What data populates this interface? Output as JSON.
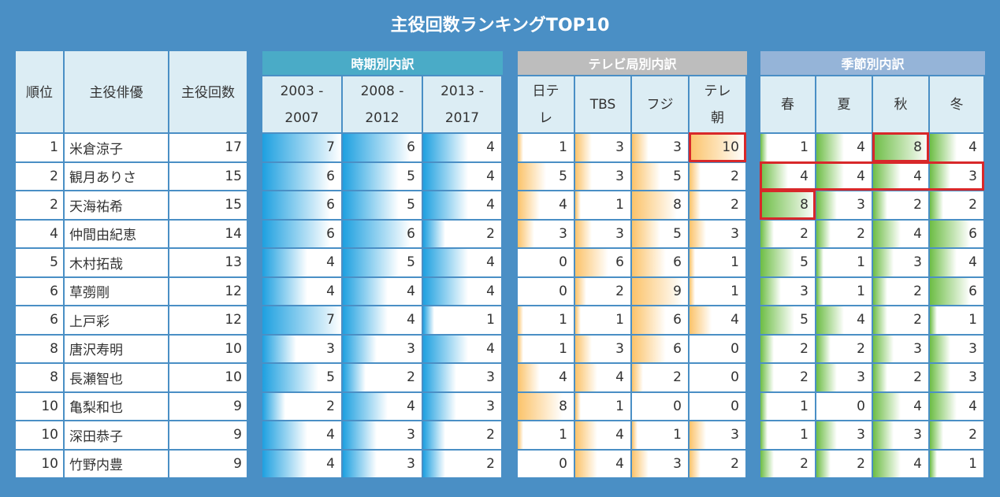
{
  "title": "主役回数ランキングTOP10",
  "columns": [
    "順位",
    "主役俳優",
    "主役回数"
  ],
  "groups": [
    {
      "title": "時期別内訳",
      "header_color": "#4aabc7",
      "bar_color": "#1ea0e0",
      "columns": [
        "2003 - 2007",
        "2008 - 2012",
        "2013 - 2017"
      ]
    },
    {
      "title": "テレビ局別内訳",
      "header_color": "#bdbdbd",
      "bar_color": "#fbc36a",
      "columns": [
        "日テレ",
        "TBS",
        "フジ",
        "テレ朝"
      ]
    },
    {
      "title": "季節別内訳",
      "header_color": "#95b4d8",
      "bar_color": "#6dbd45",
      "columns": [
        "春",
        "夏",
        "秋",
        "冬"
      ]
    }
  ],
  "rows": [
    {
      "rank": 1,
      "name": "米倉涼子",
      "count": 17,
      "breakdown": [
        [
          7,
          6,
          4
        ],
        [
          1,
          3,
          3,
          10
        ],
        [
          1,
          4,
          8,
          4
        ]
      ]
    },
    {
      "rank": 2,
      "name": "観月ありさ",
      "count": 15,
      "breakdown": [
        [
          6,
          5,
          4
        ],
        [
          5,
          3,
          5,
          2
        ],
        [
          4,
          4,
          4,
          3
        ]
      ]
    },
    {
      "rank": 2,
      "name": "天海祐希",
      "count": 15,
      "breakdown": [
        [
          6,
          5,
          4
        ],
        [
          4,
          1,
          8,
          2
        ],
        [
          8,
          3,
          2,
          2
        ]
      ]
    },
    {
      "rank": 4,
      "name": "仲間由紀恵",
      "count": 14,
      "breakdown": [
        [
          6,
          6,
          2
        ],
        [
          3,
          3,
          5,
          3
        ],
        [
          2,
          2,
          4,
          6
        ]
      ]
    },
    {
      "rank": 5,
      "name": "木村拓哉",
      "count": 13,
      "breakdown": [
        [
          4,
          5,
          4
        ],
        [
          0,
          6,
          6,
          1
        ],
        [
          5,
          1,
          3,
          4
        ]
      ]
    },
    {
      "rank": 6,
      "name": "草彅剛",
      "count": 12,
      "breakdown": [
        [
          4,
          4,
          4
        ],
        [
          0,
          2,
          9,
          1
        ],
        [
          3,
          1,
          2,
          6
        ]
      ]
    },
    {
      "rank": 6,
      "name": "上戸彩",
      "count": 12,
      "breakdown": [
        [
          7,
          4,
          1
        ],
        [
          1,
          1,
          6,
          4
        ],
        [
          5,
          4,
          2,
          1
        ]
      ]
    },
    {
      "rank": 8,
      "name": "唐沢寿明",
      "count": 10,
      "breakdown": [
        [
          3,
          3,
          4
        ],
        [
          1,
          3,
          6,
          0
        ],
        [
          2,
          2,
          3,
          3
        ]
      ]
    },
    {
      "rank": 8,
      "name": "長瀬智也",
      "count": 10,
      "breakdown": [
        [
          5,
          2,
          3
        ],
        [
          4,
          4,
          2,
          0
        ],
        [
          2,
          3,
          2,
          3
        ]
      ]
    },
    {
      "rank": 10,
      "name": "亀梨和也",
      "count": 9,
      "breakdown": [
        [
          2,
          4,
          3
        ],
        [
          8,
          1,
          0,
          0
        ],
        [
          1,
          0,
          4,
          4
        ]
      ]
    },
    {
      "rank": 10,
      "name": "深田恭子",
      "count": 9,
      "breakdown": [
        [
          4,
          3,
          2
        ],
        [
          1,
          4,
          1,
          3
        ],
        [
          1,
          3,
          3,
          2
        ]
      ]
    },
    {
      "rank": 10,
      "name": "竹野内豊",
      "count": 9,
      "breakdown": [
        [
          4,
          3,
          2
        ],
        [
          0,
          4,
          3,
          2
        ],
        [
          2,
          2,
          4,
          1
        ]
      ]
    }
  ]
}
